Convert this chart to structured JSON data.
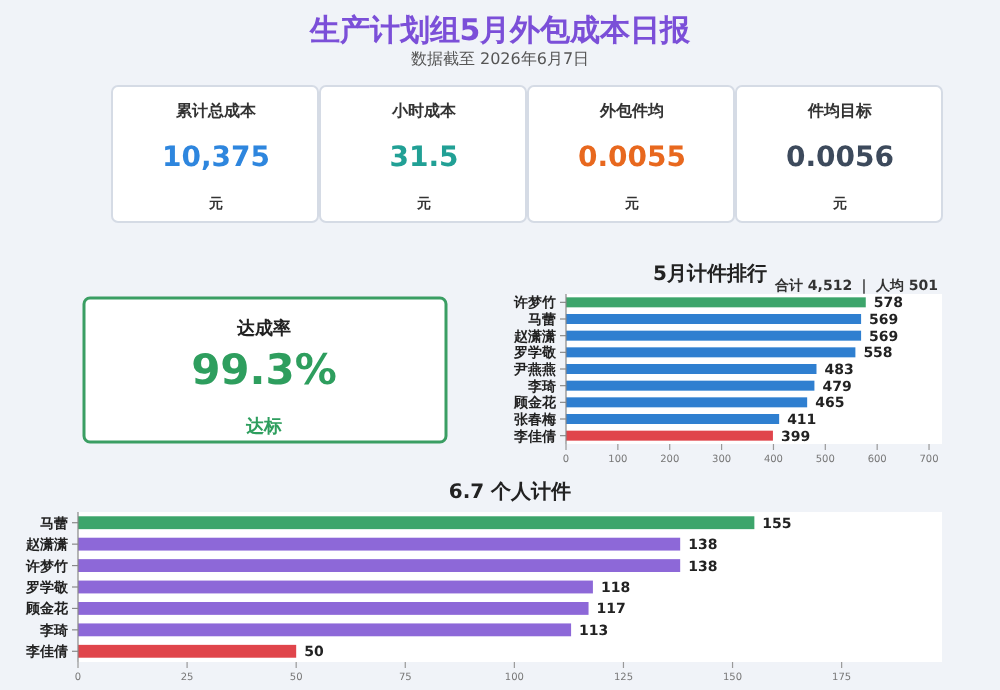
{
  "chart_data": [
    {
      "type": "other",
      "title": "生产计划组5月外包成本日报",
      "subtitle": "数据截至 2026年6月7日",
      "annotations": [
        "累计总成本",
        "10,375",
        "元",
        "小时成本",
        "31.5",
        "元",
        "外包件均",
        "0.0055",
        "元",
        "件均目标",
        "0.0056",
        "元"
      ]
    },
    {
      "type": "other",
      "annotations": [
        "达成率",
        "99.3%",
        "达标"
      ]
    },
    {
      "type": "bar",
      "orientation": "horizontal",
      "title": "5月计件排行",
      "subtitle": "合计 4,512 ｜ 人均 501",
      "categories": [
        "许梦竹",
        "马蕾",
        "赵潇潇",
        "罗学敬",
        "尹燕燕",
        "李琦",
        "顾金花",
        "张春梅",
        "李佳倩"
      ],
      "values": [
        578,
        569,
        569,
        558,
        483,
        479,
        465,
        411,
        399
      ],
      "colors": [
        "#3da56b",
        "#2f7fd0",
        "#2f7fd0",
        "#2f7fd0",
        "#2f7fd0",
        "#2f7fd0",
        "#2f7fd0",
        "#2f7fd0",
        "#e0454b"
      ],
      "xlim": [
        0,
        725
      ],
      "xticks": [
        0,
        100,
        200,
        300,
        400,
        500,
        600,
        700
      ],
      "data_labels": true
    },
    {
      "type": "bar",
      "orientation": "horizontal",
      "title": "6.7 个人计件",
      "categories": [
        "马蕾",
        "赵潇潇",
        "许梦竹",
        "罗学敬",
        "顾金花",
        "李琦",
        "李佳倩"
      ],
      "values": [
        155,
        138,
        138,
        118,
        117,
        113,
        50
      ],
      "colors": [
        "#3da56b",
        "#8d68d8",
        "#8d68d8",
        "#8d68d8",
        "#8d68d8",
        "#8d68d8",
        "#e0454b"
      ],
      "xlim": [
        0,
        198
      ],
      "xticks": [
        0,
        25,
        50,
        75,
        100,
        125,
        150,
        175
      ],
      "data_labels": true
    }
  ]
}
